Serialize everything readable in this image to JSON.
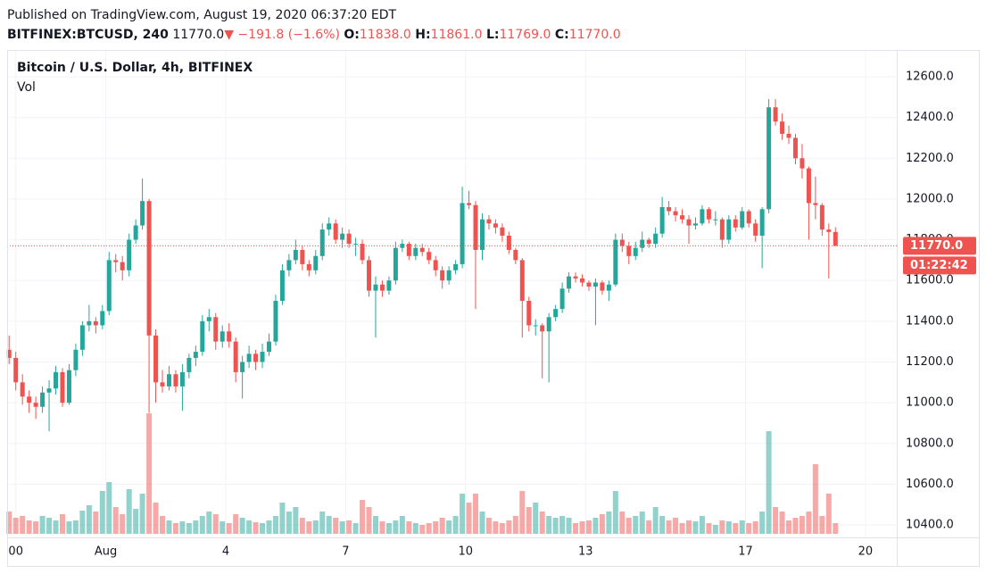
{
  "header": {
    "published": "Published on TradingView.com, August 19, 2020 06:37:20 EDT",
    "symbol": "BITFINEX:BTCUSD, 240",
    "last": "11770.0",
    "arrow": "▼",
    "change": "−191.8 (−1.6%)",
    "o_label": "O:",
    "o": "11838.0",
    "h_label": "H:",
    "h": "11861.0",
    "l_label": "L:",
    "l": "11769.0",
    "c_label": "C:",
    "c": "11770.0"
  },
  "chart_data": {
    "type": "candlestick",
    "title": "Bitcoin / U.S. Dollar, 4h, BITFINEX",
    "volume_label": "Vol",
    "up_color": "#26a69a",
    "down_color": "#ef5350",
    "grid": true,
    "xlim": [
      -0.3,
      133.2
    ],
    "xticks": [
      {
        "value": 1,
        "label": "00"
      },
      {
        "value": 14.5,
        "label": "Aug"
      },
      {
        "value": 32.5,
        "label": "4"
      },
      {
        "value": 50.5,
        "label": "7"
      },
      {
        "value": 68.5,
        "label": "10"
      },
      {
        "value": 86.5,
        "label": "13"
      },
      {
        "value": 110.5,
        "label": "17"
      },
      {
        "value": 128.5,
        "label": "20"
      }
    ],
    "ylim": [
      10339,
      12705
    ],
    "yticks": [
      {
        "value": 10400,
        "label": "10400.0"
      },
      {
        "value": 10600,
        "label": "10600.0"
      },
      {
        "value": 10800,
        "label": "10800.0"
      },
      {
        "value": 11000,
        "label": "11000.0"
      },
      {
        "value": 11200,
        "label": "11200.0"
      },
      {
        "value": 11400,
        "label": "11400.0"
      },
      {
        "value": 11600,
        "label": "11600.0"
      },
      {
        "value": 11800,
        "label": "11800.0"
      },
      {
        "value": 12000,
        "label": "12000.0"
      },
      {
        "value": 12200,
        "label": "12200.0"
      },
      {
        "value": 12400,
        "label": "12400.0"
      },
      {
        "value": 12600,
        "label": "12600.0"
      }
    ],
    "price_line": {
      "value": 11770,
      "label": "11770.0"
    },
    "countdown": "01:22:42",
    "ohlc": [
      [
        11260,
        11330,
        11190,
        11220
      ],
      [
        11220,
        11250,
        11060,
        11100
      ],
      [
        11100,
        11140,
        10990,
        11030
      ],
      [
        11030,
        11060,
        10950,
        11000
      ],
      [
        11000,
        11030,
        10920,
        10980
      ],
      [
        10980,
        11080,
        10950,
        11050
      ],
      [
        11050,
        11110,
        10860,
        11070
      ],
      [
        11070,
        11180,
        11040,
        11150
      ],
      [
        11150,
        11170,
        10980,
        11000
      ],
      [
        11000,
        11190,
        10990,
        11160
      ],
      [
        11160,
        11290,
        11130,
        11260
      ],
      [
        11260,
        11400,
        11230,
        11380
      ],
      [
        11380,
        11480,
        11350,
        11400
      ],
      [
        11400,
        11420,
        11340,
        11380
      ],
      [
        11380,
        11480,
        11360,
        11450
      ],
      [
        11450,
        11740,
        11430,
        11700
      ],
      [
        11700,
        11730,
        11640,
        11690
      ],
      [
        11690,
        11720,
        11600,
        11650
      ],
      [
        11650,
        11830,
        11620,
        11800
      ],
      [
        11800,
        11900,
        11780,
        11870
      ],
      [
        11870,
        12100,
        11850,
        11990
      ],
      [
        11990,
        12000,
        10950,
        11330
      ],
      [
        11330,
        11360,
        11000,
        11100
      ],
      [
        11100,
        11160,
        11050,
        11080
      ],
      [
        11080,
        11180,
        11060,
        11140
      ],
      [
        11140,
        11160,
        11050,
        11080
      ],
      [
        11080,
        11190,
        10960,
        11150
      ],
      [
        11150,
        11240,
        11120,
        11220
      ],
      [
        11220,
        11280,
        11180,
        11250
      ],
      [
        11250,
        11430,
        11230,
        11400
      ],
      [
        11400,
        11460,
        11350,
        11420
      ],
      [
        11420,
        11440,
        11260,
        11300
      ],
      [
        11300,
        11380,
        11270,
        11350
      ],
      [
        11350,
        11390,
        11270,
        11300
      ],
      [
        11300,
        11320,
        11100,
        11150
      ],
      [
        11150,
        11230,
        11020,
        11200
      ],
      [
        11200,
        11280,
        11170,
        11240
      ],
      [
        11240,
        11260,
        11160,
        11200
      ],
      [
        11200,
        11290,
        11170,
        11250
      ],
      [
        11250,
        11340,
        11230,
        11300
      ],
      [
        11300,
        11530,
        11280,
        11500
      ],
      [
        11500,
        11680,
        11480,
        11650
      ],
      [
        11650,
        11730,
        11620,
        11700
      ],
      [
        11700,
        11800,
        11680,
        11750
      ],
      [
        11750,
        11770,
        11650,
        11680
      ],
      [
        11680,
        11700,
        11620,
        11650
      ],
      [
        11650,
        11750,
        11630,
        11720
      ],
      [
        11720,
        11880,
        11700,
        11850
      ],
      [
        11850,
        11910,
        11820,
        11880
      ],
      [
        11880,
        11900,
        11780,
        11800
      ],
      [
        11800,
        11860,
        11760,
        11830
      ],
      [
        11830,
        11850,
        11760,
        11780
      ],
      [
        11780,
        11810,
        11720,
        11780
      ],
      [
        11780,
        11800,
        11680,
        11700
      ],
      [
        11700,
        11720,
        11520,
        11550
      ],
      [
        11550,
        11620,
        11320,
        11580
      ],
      [
        11580,
        11600,
        11520,
        11550
      ],
      [
        11550,
        11620,
        11530,
        11600
      ],
      [
        11600,
        11790,
        11580,
        11760
      ],
      [
        11760,
        11800,
        11740,
        11780
      ],
      [
        11780,
        11790,
        11700,
        11720
      ],
      [
        11720,
        11780,
        11700,
        11760
      ],
      [
        11760,
        11780,
        11720,
        11740
      ],
      [
        11740,
        11760,
        11680,
        11700
      ],
      [
        11700,
        11720,
        11620,
        11650
      ],
      [
        11650,
        11670,
        11560,
        11600
      ],
      [
        11600,
        11670,
        11580,
        11650
      ],
      [
        11650,
        11700,
        11630,
        11680
      ],
      [
        11680,
        12060,
        11660,
        11980
      ],
      [
        11980,
        12040,
        11950,
        11970
      ],
      [
        11970,
        11990,
        11460,
        11750
      ],
      [
        11750,
        11930,
        11700,
        11900
      ],
      [
        11900,
        11920,
        11850,
        11880
      ],
      [
        11880,
        11900,
        11830,
        11860
      ],
      [
        11860,
        11880,
        11790,
        11820
      ],
      [
        11820,
        11840,
        11730,
        11750
      ],
      [
        11750,
        11760,
        11680,
        11700
      ],
      [
        11700,
        11710,
        11320,
        11500
      ],
      [
        11500,
        11520,
        11350,
        11380
      ],
      [
        11380,
        11410,
        11330,
        11380
      ],
      [
        11380,
        11390,
        11120,
        11350
      ],
      [
        11350,
        11440,
        11100,
        11420
      ],
      [
        11420,
        11480,
        11400,
        11460
      ],
      [
        11460,
        11590,
        11440,
        11560
      ],
      [
        11560,
        11640,
        11540,
        11620
      ],
      [
        11620,
        11640,
        11590,
        11610
      ],
      [
        11610,
        11630,
        11570,
        11590
      ],
      [
        11590,
        11600,
        11550,
        11570
      ],
      [
        11570,
        11610,
        11380,
        11590
      ],
      [
        11590,
        11600,
        11530,
        11550
      ],
      [
        11550,
        11600,
        11500,
        11580
      ],
      [
        11580,
        11830,
        11570,
        11800
      ],
      [
        11800,
        11830,
        11740,
        11770
      ],
      [
        11770,
        11790,
        11680,
        11720
      ],
      [
        11720,
        11790,
        11700,
        11760
      ],
      [
        11760,
        11840,
        11740,
        11800
      ],
      [
        11800,
        11810,
        11760,
        11780
      ],
      [
        11780,
        11860,
        11760,
        11830
      ],
      [
        11830,
        12010,
        11810,
        11960
      ],
      [
        11960,
        11990,
        11920,
        11940
      ],
      [
        11940,
        11960,
        11890,
        11920
      ],
      [
        11920,
        11950,
        11880,
        11900
      ],
      [
        11900,
        11920,
        11780,
        11870
      ],
      [
        11870,
        11910,
        11850,
        11880
      ],
      [
        11880,
        11970,
        11870,
        11950
      ],
      [
        11950,
        11960,
        11880,
        11900
      ],
      [
        11900,
        11940,
        11870,
        11900
      ],
      [
        11900,
        11910,
        11760,
        11800
      ],
      [
        11800,
        11920,
        11780,
        11900
      ],
      [
        11900,
        11920,
        11840,
        11860
      ],
      [
        11860,
        11960,
        11850,
        11940
      ],
      [
        11940,
        11950,
        11860,
        11880
      ],
      [
        11880,
        11900,
        11790,
        11820
      ],
      [
        11820,
        11960,
        11660,
        11950
      ],
      [
        11950,
        12490,
        11930,
        12450
      ],
      [
        12450,
        12490,
        12360,
        12380
      ],
      [
        12380,
        12420,
        12290,
        12320
      ],
      [
        12320,
        12360,
        12270,
        12300
      ],
      [
        12300,
        12320,
        12170,
        12200
      ],
      [
        12200,
        12270,
        12100,
        12150
      ],
      [
        12150,
        12160,
        11800,
        11980
      ],
      [
        11980,
        12110,
        11900,
        11970
      ],
      [
        11970,
        11980,
        11820,
        11850
      ],
      [
        11850,
        11880,
        11610,
        11838
      ],
      [
        11838,
        11861,
        11769,
        11770
      ]
    ],
    "volume": [
      25,
      18,
      20,
      15,
      14,
      20,
      18,
      15,
      22,
      14,
      15,
      26,
      32,
      25,
      48,
      58,
      30,
      22,
      50,
      28,
      45,
      135,
      35,
      20,
      15,
      12,
      14,
      12,
      15,
      20,
      25,
      22,
      14,
      12,
      22,
      18,
      15,
      13,
      12,
      15,
      20,
      35,
      25,
      30,
      18,
      14,
      15,
      25,
      20,
      18,
      14,
      15,
      12,
      38,
      30,
      20,
      14,
      12,
      15,
      20,
      14,
      12,
      10,
      12,
      14,
      18,
      15,
      20,
      45,
      35,
      45,
      25,
      18,
      14,
      12,
      15,
      20,
      48,
      30,
      35,
      25,
      20,
      18,
      20,
      18,
      12,
      14,
      15,
      18,
      22,
      25,
      48,
      25,
      18,
      20,
      25,
      15,
      30,
      20,
      15,
      18,
      12,
      15,
      14,
      20,
      12,
      10,
      15,
      14,
      12,
      15,
      12,
      14,
      25,
      115,
      30,
      25,
      15,
      18,
      20,
      25,
      78,
      20,
      45,
      12
    ]
  }
}
